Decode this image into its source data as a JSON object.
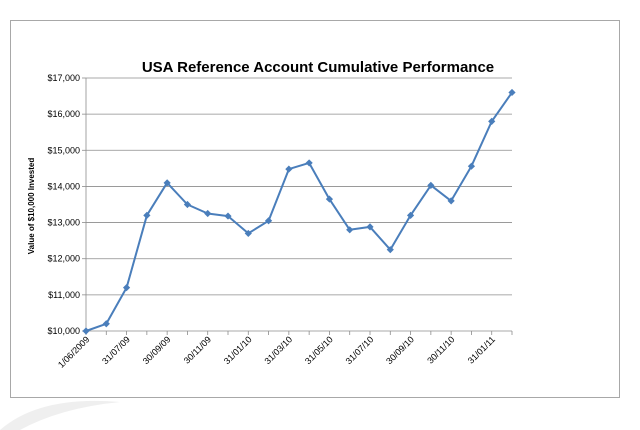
{
  "chart_data": {
    "type": "line",
    "title": "USA  Reference Account Cumulative Performance",
    "ylabel": "Value of $10,000 Invested",
    "xlabel": "",
    "ylim": [
      10000,
      17000
    ],
    "y_ticks": [
      "$10,000",
      "$11,000",
      "$12,000",
      "$13,000",
      "$14,000",
      "$15,000",
      "$16,000",
      "$17,000"
    ],
    "y_tick_values": [
      10000,
      11000,
      12000,
      13000,
      14000,
      15000,
      16000,
      17000
    ],
    "grid": true,
    "legend": "none",
    "x_tick_labels": [
      {
        "index": 0,
        "label": "1/06/2009"
      },
      {
        "index": 2,
        "label": "31/07/09"
      },
      {
        "index": 4,
        "label": "30/09/09"
      },
      {
        "index": 6,
        "label": "30/11/09"
      },
      {
        "index": 8,
        "label": "31/01/10"
      },
      {
        "index": 10,
        "label": "31/03/10"
      },
      {
        "index": 12,
        "label": "31/05/10"
      },
      {
        "index": 14,
        "label": "31/07/10"
      },
      {
        "index": 16,
        "label": "30/09/10"
      },
      {
        "index": 18,
        "label": "30/11/10"
      },
      {
        "index": 20,
        "label": "31/01/11"
      }
    ],
    "series": [
      {
        "values": [
          10000,
          10200,
          11200,
          13200,
          14100,
          13500,
          13250,
          13180,
          12700,
          13050,
          14480,
          14650,
          13650,
          12800,
          12880,
          12250,
          13200,
          14030,
          13600,
          14560,
          15800,
          16600
        ],
        "color": "#4a7ebb"
      }
    ]
  }
}
